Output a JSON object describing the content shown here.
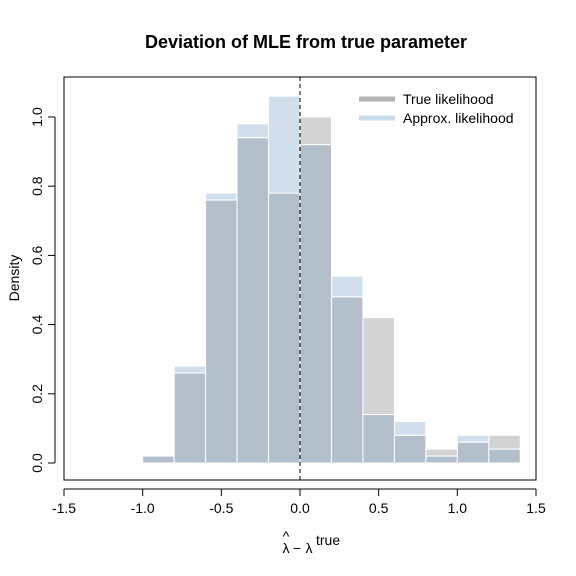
{
  "chart_data": {
    "type": "bar",
    "title": "Deviation of MLE from true parameter",
    "xlabel": "λ̂ − λ true",
    "xlabel_parts": {
      "symbol": "λ",
      "hat": "^",
      "minus": "−",
      "superscript": "true"
    },
    "ylabel": "Density",
    "xlim": [
      -1.5,
      1.5
    ],
    "ylim": [
      0,
      1.06
    ],
    "x_ticks": [
      -1.5,
      -1.0,
      -0.5,
      0.0,
      0.5,
      1.0,
      1.5
    ],
    "x_tick_labels": [
      "-1.5",
      "-1.0",
      "-0.5",
      "0.0",
      "0.5",
      "1.0",
      "1.5"
    ],
    "y_ticks": [
      0.0,
      0.2,
      0.4,
      0.6,
      0.8,
      1.0
    ],
    "y_tick_labels": [
      "0.0",
      "0.2",
      "0.4",
      "0.6",
      "0.8",
      "1.0"
    ],
    "bin_edges": [
      -1.0,
      -0.8,
      -0.6,
      -0.4,
      -0.2,
      0.0,
      0.2,
      0.4,
      0.6,
      0.8,
      1.0,
      1.2,
      1.4
    ],
    "series": [
      {
        "name": "True likelihood",
        "color": "#b4b4b4",
        "values": [
          0.02,
          0.26,
          0.76,
          0.94,
          0.78,
          1.0,
          0.48,
          0.42,
          0.08,
          0.04,
          0.06,
          0.08
        ]
      },
      {
        "name": "Approx. likelihood",
        "color": "#b9cfe3",
        "values": [
          0.02,
          0.28,
          0.78,
          0.98,
          1.06,
          0.92,
          0.54,
          0.14,
          0.12,
          0.02,
          0.08,
          0.04
        ]
      }
    ],
    "reference_line": {
      "x": 0.0,
      "style": "dashed",
      "color": "#000000"
    },
    "legend": {
      "placement": "top-right"
    },
    "grid": false
  }
}
